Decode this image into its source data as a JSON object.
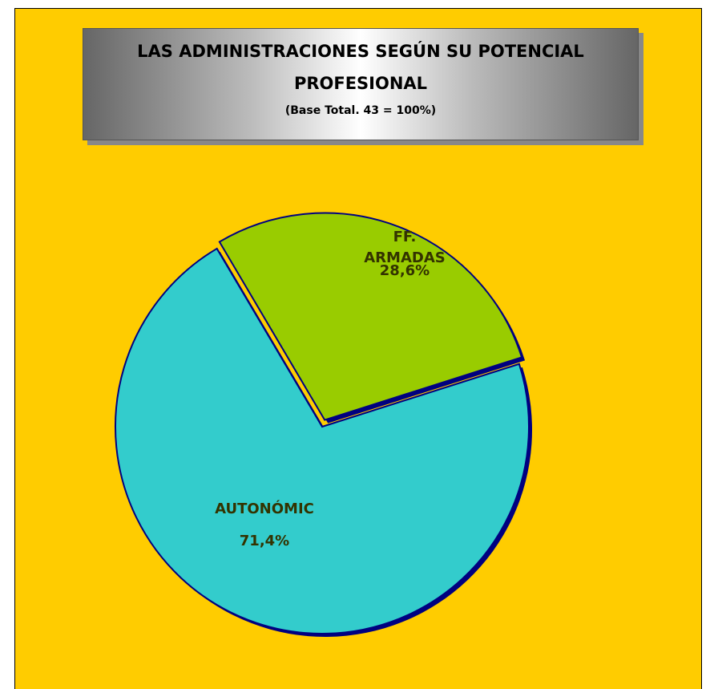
{
  "chart_data": {
    "type": "pie",
    "title": "LAS ADMINISTRACIONES SEGÚN SU POTENCIAL PROFESIONAL",
    "subtitle": "(Base Total. 43 = 100%)",
    "categories": [
      "FF. ARMADAS",
      "AUTONÓMIC"
    ],
    "values": [
      28.6,
      71.4
    ],
    "value_labels": [
      "28,6%",
      "71,4%"
    ],
    "colors": [
      "#99cc00",
      "#33cccc"
    ]
  }
}
